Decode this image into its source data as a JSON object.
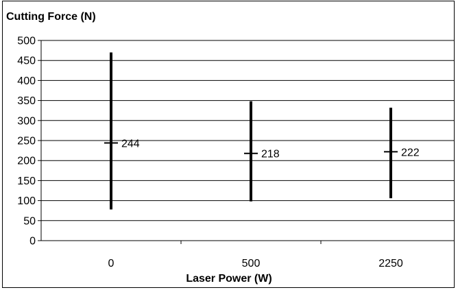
{
  "chart_data": {
    "type": "error-bar",
    "ylabel": "Cutting Force (N)",
    "xlabel": "Laser Power (W)",
    "ylim": [
      0,
      500
    ],
    "yticks": [
      0,
      50,
      100,
      150,
      200,
      250,
      300,
      350,
      400,
      450,
      500
    ],
    "grid": true,
    "categories": [
      "0",
      "500",
      "2250"
    ],
    "series": [
      {
        "points": [
          {
            "category": "0",
            "mean": 244,
            "low": 78,
            "high": 470
          },
          {
            "category": "500",
            "mean": 218,
            "low": 98,
            "high": 348
          },
          {
            "category": "2250",
            "mean": 222,
            "low": 106,
            "high": 332
          }
        ]
      }
    ],
    "data_labels": [
      "244",
      "218",
      "222"
    ]
  }
}
